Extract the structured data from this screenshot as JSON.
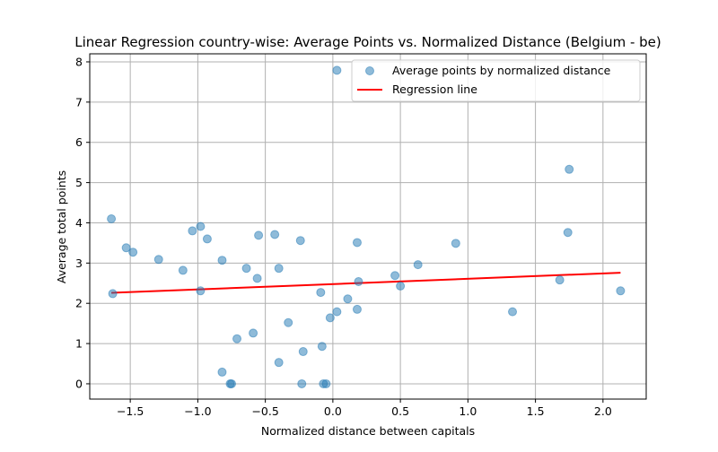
{
  "chart_data": {
    "type": "scatter",
    "title": "Linear Regression country-wise: Average Points vs. Normalized Distance (Belgium - be)",
    "xlabel": "Normalized distance between capitals",
    "ylabel": "Average total points",
    "xlim": [
      -1.8,
      2.32
    ],
    "ylim": [
      -0.38,
      8.2
    ],
    "xticks": [
      -1.5,
      -1.0,
      -0.5,
      0.0,
      0.5,
      1.0,
      1.5,
      2.0
    ],
    "xtick_labels": [
      "−1.5",
      "−1.0",
      "−0.5",
      "0.0",
      "0.5",
      "1.0",
      "1.5",
      "2.0"
    ],
    "yticks": [
      0,
      1,
      2,
      3,
      4,
      5,
      6,
      7,
      8
    ],
    "ytick_labels": [
      "0",
      "1",
      "2",
      "3",
      "4",
      "5",
      "6",
      "7",
      "8"
    ],
    "grid": true,
    "legend_position": "top-right",
    "series": [
      {
        "name": "Average points by normalized distance",
        "kind": "scatter",
        "color": "#1f77b4",
        "points": [
          [
            -1.64,
            4.1
          ],
          [
            -1.63,
            2.24
          ],
          [
            -1.53,
            3.38
          ],
          [
            -1.48,
            3.27
          ],
          [
            -1.29,
            3.09
          ],
          [
            -1.11,
            2.82
          ],
          [
            -1.04,
            3.8
          ],
          [
            -0.98,
            3.91
          ],
          [
            -0.98,
            2.31
          ],
          [
            -0.93,
            3.6
          ],
          [
            -0.82,
            3.07
          ],
          [
            -0.82,
            0.29
          ],
          [
            -0.76,
            0.0
          ],
          [
            -0.75,
            0.0
          ],
          [
            -0.71,
            1.12
          ],
          [
            -0.64,
            2.87
          ],
          [
            -0.59,
            1.26
          ],
          [
            -0.56,
            2.62
          ],
          [
            -0.55,
            3.69
          ],
          [
            -0.43,
            3.71
          ],
          [
            -0.4,
            2.87
          ],
          [
            -0.4,
            0.53
          ],
          [
            -0.33,
            1.52
          ],
          [
            -0.24,
            3.56
          ],
          [
            -0.23,
            0.0
          ],
          [
            -0.22,
            0.8
          ],
          [
            -0.09,
            2.27
          ],
          [
            -0.08,
            0.93
          ],
          [
            -0.07,
            0.0
          ],
          [
            -0.05,
            0.0
          ],
          [
            -0.02,
            1.64
          ],
          [
            0.03,
            1.79
          ],
          [
            0.03,
            7.79
          ],
          [
            0.11,
            2.11
          ],
          [
            0.18,
            3.51
          ],
          [
            0.18,
            1.85
          ],
          [
            0.19,
            2.54
          ],
          [
            0.46,
            2.69
          ],
          [
            0.5,
            2.43
          ],
          [
            0.63,
            2.96
          ],
          [
            0.91,
            3.49
          ],
          [
            1.33,
            1.79
          ],
          [
            1.68,
            2.58
          ],
          [
            1.74,
            3.76
          ],
          [
            1.75,
            5.33
          ],
          [
            2.13,
            2.31
          ]
        ]
      },
      {
        "name": "Regression line",
        "kind": "line",
        "color": "#ff0000",
        "x": [
          -1.64,
          2.13
        ],
        "y": [
          2.26,
          2.76
        ]
      }
    ]
  }
}
